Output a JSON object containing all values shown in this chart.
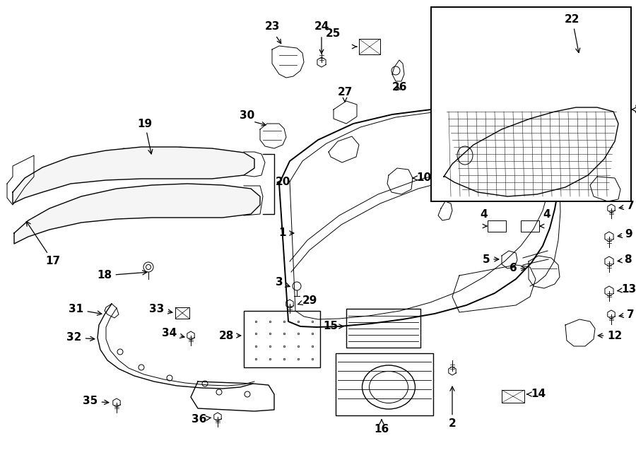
{
  "bg_color": "#ffffff",
  "line_color": "#000000",
  "fig_width": 9.0,
  "fig_height": 6.61,
  "font_size": 11,
  "font_size_small": 10
}
